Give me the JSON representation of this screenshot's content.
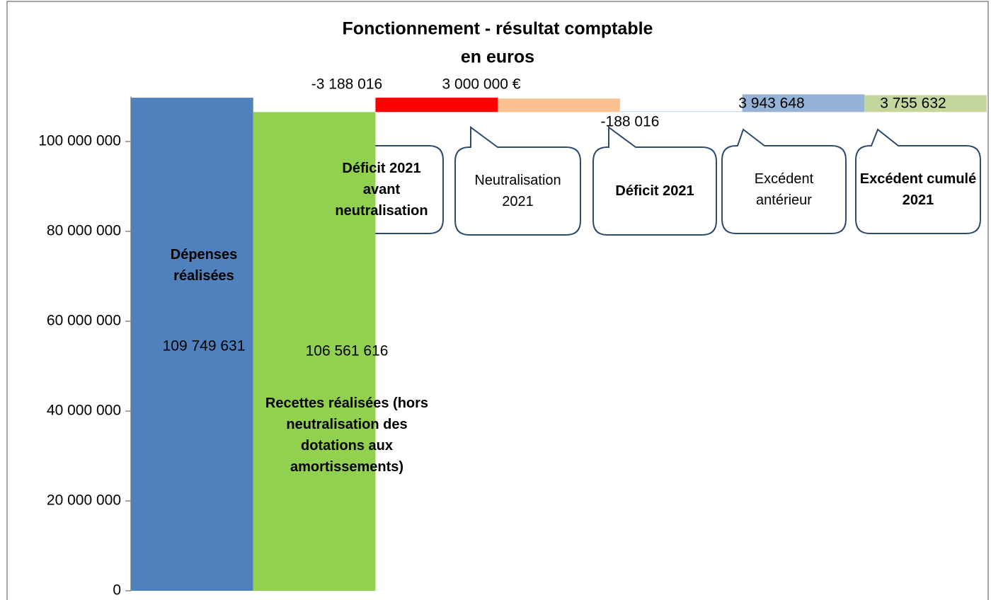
{
  "chart_data": {
    "type": "waterfall",
    "title": "Fonctionnement - résultat comptable",
    "subtitle": "en euros",
    "categories": [
      "Dépenses réalisées",
      "Recettes réalisées (hors neutralisation des dotations aux amortissements)",
      "Déficit 2021 avant neutralisation",
      "Neutralisation 2021",
      "Déficit 2021",
      "Excédent antérieur",
      "Excédent cumulé 2021"
    ],
    "values": [
      109749631,
      106561616,
      -3188016,
      3000000,
      -188016,
      3943648,
      3755632
    ],
    "value_labels": [
      "109 749 631",
      "106 561 616",
      "-3 188 016",
      "3 000 000 €",
      "-188 016",
      "3 943 648",
      "3 755 632"
    ],
    "colors": [
      "#4f81bd",
      "#92d050",
      "#ff0000",
      "#fac090",
      "#b7dee8",
      "#95b3d7",
      "#c3d69b"
    ],
    "ylim": [
      0,
      110000000
    ],
    "yticks": [
      {
        "value": 0,
        "label": "0"
      },
      {
        "value": 20000000,
        "label": "20 000 000"
      },
      {
        "value": 40000000,
        "label": "40 000 000"
      },
      {
        "value": 60000000,
        "label": "60 000 000"
      },
      {
        "value": 80000000,
        "label": "80 000 000"
      },
      {
        "value": 100000000,
        "label": "100 000 000"
      }
    ]
  }
}
